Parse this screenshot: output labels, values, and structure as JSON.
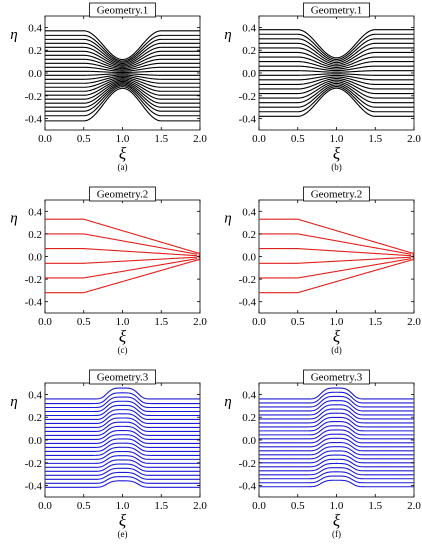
{
  "panel_labels": [
    "(a)",
    "(b)",
    "(c)",
    "(d)",
    "(e)",
    "(f)"
  ],
  "chart_data": [
    {
      "type": "line",
      "title": "Geometry.1",
      "panel_label": "(a)",
      "color": "#000000",
      "xlabel": "ξ",
      "ylabel": "η",
      "xlim": [
        0.0,
        2.0
      ],
      "ylim": [
        -0.5,
        0.5
      ],
      "xticks": [
        "0.0",
        "0.5",
        "1.0",
        "1.5",
        "2.0"
      ],
      "yticks": [
        "-0.4",
        "-0.2",
        "0.0",
        "0.2",
        "0.4"
      ],
      "grid": false,
      "geometry": "constriction",
      "constriction": {
        "x_start": 0.5,
        "x_end": 1.5,
        "min_fraction": 0.32
      },
      "series_y_inlet": [
        0.37,
        0.33,
        0.295,
        0.26,
        0.225,
        0.19,
        0.155,
        0.12,
        0.085,
        0.05,
        0.015,
        -0.02,
        -0.055,
        -0.09,
        -0.125,
        -0.16,
        -0.195,
        -0.23,
        -0.265,
        -0.3,
        -0.335,
        -0.375,
        -0.42
      ]
    },
    {
      "type": "line",
      "title": "Geometry.1",
      "panel_label": "(b)",
      "color": "#000000",
      "xlabel": "ξ",
      "ylabel": "η",
      "xlim": [
        0.0,
        2.0
      ],
      "ylim": [
        -0.5,
        0.5
      ],
      "xticks": [
        "0.0",
        "0.5",
        "1.0",
        "1.5",
        "2.0"
      ],
      "yticks": [
        "-0.4",
        "-0.2",
        "0.0",
        "0.2",
        "0.4"
      ],
      "grid": false,
      "geometry": "constriction",
      "constriction": {
        "x_start": 0.5,
        "x_end": 1.5,
        "min_fraction": 0.35
      },
      "series_y_inlet": [
        0.38,
        0.34,
        0.3,
        0.26,
        0.22,
        0.18,
        0.14,
        0.1,
        0.06,
        0.02,
        -0.02,
        -0.06,
        -0.1,
        -0.14,
        -0.18,
        -0.22,
        -0.26,
        -0.3,
        -0.34,
        -0.38
      ]
    },
    {
      "type": "line",
      "title": "Geometry.2",
      "panel_label": "(c)",
      "color": "#e0201c",
      "xlabel": "ξ",
      "ylabel": "η",
      "xlim": [
        0.0,
        2.0
      ],
      "ylim": [
        -0.5,
        0.5
      ],
      "xticks": [
        "0.0",
        "0.5",
        "1.0",
        "1.5",
        "2.0"
      ],
      "yticks": [
        "-0.4",
        "-0.2",
        "0.0",
        "0.2",
        "0.4"
      ],
      "grid": false,
      "geometry": "converging",
      "converging": {
        "x_bend": 0.5,
        "x_end": 1.97,
        "end_fraction": 0.095
      },
      "series_y_inlet": [
        0.33,
        0.2,
        0.07,
        -0.06,
        -0.19,
        -0.32
      ]
    },
    {
      "type": "line",
      "title": "Geometry.2",
      "panel_label": "(d)",
      "color": "#e0201c",
      "xlabel": "ξ",
      "ylabel": "η",
      "xlim": [
        0.0,
        2.0
      ],
      "ylim": [
        -0.5,
        0.5
      ],
      "xticks": [
        "0.0",
        "0.5",
        "1.0",
        "1.5",
        "2.0"
      ],
      "yticks": [
        "-0.4",
        "-0.2",
        "0.0",
        "0.2",
        "0.4"
      ],
      "grid": false,
      "geometry": "converging",
      "converging": {
        "x_bend": 0.5,
        "x_end": 1.97,
        "end_fraction": 0.095
      },
      "series_y_inlet": [
        0.33,
        0.2,
        0.07,
        -0.06,
        -0.19,
        -0.32
      ]
    },
    {
      "type": "line",
      "title": "Geometry.3",
      "panel_label": "(e)",
      "color": "#1c1cd6",
      "xlabel": "ξ",
      "ylabel": "η",
      "xlim": [
        0.0,
        2.0
      ],
      "ylim": [
        -0.5,
        0.5
      ],
      "xticks": [
        "0.0",
        "0.5",
        "1.0",
        "1.5",
        "2.0"
      ],
      "yticks": [
        "-0.4",
        "-0.2",
        "0.0",
        "0.2",
        "0.4"
      ],
      "grid": false,
      "geometry": "bump",
      "bump": {
        "x_center": 1.0,
        "width": 0.22,
        "height": 0.1
      },
      "series_y_inlet": [
        0.36,
        0.32,
        0.285,
        0.25,
        0.215,
        0.18,
        0.145,
        0.11,
        0.075,
        0.04,
        0.005,
        -0.03,
        -0.065,
        -0.1,
        -0.135,
        -0.17,
        -0.205,
        -0.24,
        -0.275,
        -0.31,
        -0.345,
        -0.38,
        -0.415
      ]
    },
    {
      "type": "line",
      "title": "Geometry.3",
      "panel_label": "(f)",
      "color": "#1c1cd6",
      "xlabel": "ξ",
      "ylabel": "η",
      "xlim": [
        0.0,
        2.0
      ],
      "ylim": [
        -0.5,
        0.5
      ],
      "xticks": [
        "0.0",
        "0.5",
        "1.0",
        "1.5",
        "2.0"
      ],
      "yticks": [
        "-0.4",
        "-0.2",
        "0.0",
        "0.2",
        "0.4"
      ],
      "grid": false,
      "geometry": "bump",
      "bump": {
        "x_center": 1.0,
        "width": 0.22,
        "height": 0.1
      },
      "series_y_inlet": [
        0.36,
        0.325,
        0.29,
        0.255,
        0.22,
        0.185,
        0.15,
        0.115,
        0.08,
        0.045,
        0.01,
        -0.025,
        -0.06,
        -0.095,
        -0.13,
        -0.165,
        -0.2,
        -0.235,
        -0.27,
        -0.305,
        -0.34,
        -0.375,
        -0.41
      ]
    }
  ]
}
